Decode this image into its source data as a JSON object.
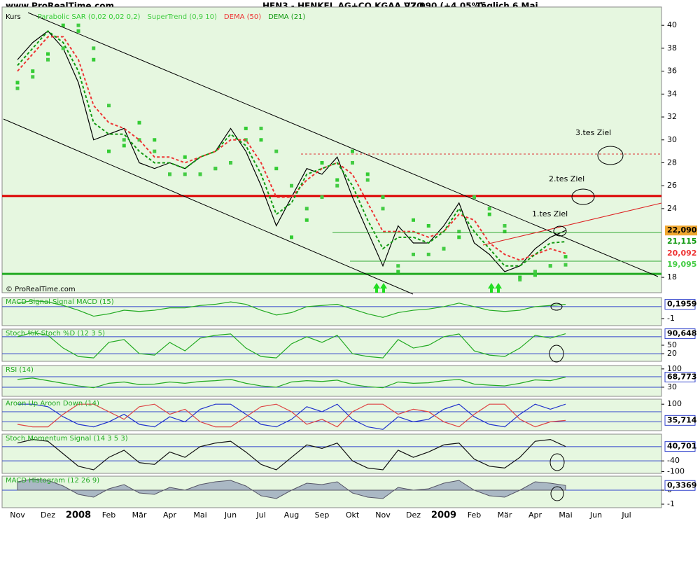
{
  "header": {
    "site": "www.ProRealTime.com",
    "instrument": "HEN3 - HENKEL AG+CO.KGAA VZO",
    "quote": "22,090 (+4,05%)",
    "period": "Täglich  6 Mai",
    "watermark": "© ProRealTime.com"
  },
  "annotations": [
    "1.tes Ziel",
    "2.tes Ziel",
    "3.tes Ziel"
  ],
  "chart_data": [
    {
      "type": "line",
      "categories": [
        "Nov",
        null,
        "Dez",
        null,
        "2008",
        null,
        "Feb",
        null,
        "Mär",
        null,
        "Apr",
        null,
        "Mai",
        null,
        "Jun",
        null,
        "Jul",
        null,
        "Aug",
        null,
        "Sep",
        null,
        "Okt",
        null,
        "Nov",
        null,
        "Dez",
        null,
        "2009",
        null,
        "Feb",
        null,
        "Mär",
        null,
        "Apr",
        null,
        "Mai",
        null,
        "Jun",
        null,
        "Jul",
        null
      ],
      "ylim": [
        16.66,
        41.6
      ],
      "yticks": [
        18,
        24,
        26,
        28,
        30,
        32,
        34,
        36,
        38,
        40
      ],
      "levels": [
        {
          "value": 25.1,
          "color": "#dd0000"
        },
        {
          "value": 18.3,
          "color": "#22aa22"
        }
      ],
      "series": [
        {
          "name": "Kurs",
          "color": "#000000",
          "style": "line",
          "last_label": "22,090",
          "values": [
            37,
            38.5,
            39.5,
            38,
            35,
            30,
            30.5,
            31,
            28,
            27.5,
            28,
            27.5,
            28.5,
            29,
            31,
            29,
            26,
            22.5,
            25,
            27.5,
            27,
            28.5,
            25,
            22,
            19,
            22.5,
            21,
            21,
            22.5,
            24.5,
            21,
            20,
            18.5,
            19,
            20.5,
            21.5,
            22.09,
            null,
            null,
            null,
            null,
            null
          ]
        },
        {
          "name": "Parabolic SAR (0,02 0,02 0,2)",
          "color": "#33cc33",
          "style": "dots",
          "values": [
            35,
            36,
            37.5,
            40,
            39.5,
            37,
            29,
            29.5,
            31.5,
            30,
            27,
            28.5,
            27,
            27.5,
            28,
            31,
            30,
            27.5,
            21.5,
            23,
            28,
            26.5,
            29,
            27,
            25,
            18.5,
            23,
            22.5,
            20.5,
            21.5,
            25,
            23.5,
            22,
            18,
            18.2,
            19,
            19.8,
            null,
            null,
            null,
            null,
            null
          ]
        },
        {
          "name": "SuperTrend (0,9 10)",
          "color": "#44cc44",
          "style": "dots",
          "last_label": "19,095",
          "values": [
            34.5,
            35.5,
            37,
            38,
            40,
            38,
            33,
            30,
            30,
            29,
            27,
            27,
            27,
            27.5,
            28,
            30,
            31,
            29,
            26,
            24,
            25,
            26,
            28,
            26.5,
            24,
            19,
            20,
            20,
            20.5,
            22,
            25,
            24,
            22.5,
            17.8,
            18.5,
            19,
            19.095,
            null,
            null,
            null,
            null,
            null
          ]
        },
        {
          "name": "DEMA (50)",
          "color": "#ee3333",
          "style": "dashed",
          "last_label": "20,092",
          "values": [
            36,
            37.5,
            39,
            39,
            37,
            33,
            31.5,
            31,
            30,
            28.5,
            28.5,
            28,
            28.5,
            29,
            30,
            30,
            28,
            25,
            25,
            26.5,
            27.5,
            28,
            27,
            24.5,
            22,
            22,
            22,
            21.5,
            22,
            23.5,
            23,
            21,
            20,
            19.5,
            20,
            20.5,
            20.092,
            null,
            null,
            null,
            null,
            null
          ]
        },
        {
          "name": "DEMA (21)",
          "color": "#119911",
          "style": "dashed",
          "last_label": "21,115",
          "values": [
            36.5,
            38,
            39.5,
            38.5,
            36,
            31.5,
            30.5,
            30.5,
            29,
            28,
            28,
            27.5,
            28.5,
            29,
            30.5,
            29.5,
            27,
            23.5,
            24.5,
            27,
            27.5,
            28,
            26,
            23,
            20.5,
            21.5,
            21.5,
            21,
            22,
            24,
            22,
            20.5,
            19,
            19,
            20,
            21,
            21.115,
            null,
            null,
            null,
            null,
            null
          ]
        }
      ]
    },
    {
      "type": "line",
      "title": "MACD Signal Signal MACD (15)",
      "ylim": [
        -1.59,
        0.76
      ],
      "yticks": [
        -1
      ],
      "levels": [
        0
      ],
      "last_label": "0,1959",
      "series": [
        {
          "color": "#22aa22",
          "values": [
            0.3,
            0.5,
            0.4,
            0.1,
            -0.3,
            -0.8,
            -0.6,
            -0.3,
            -0.4,
            -0.3,
            -0.1,
            -0.1,
            0.1,
            0.2,
            0.4,
            0.2,
            -0.3,
            -0.7,
            -0.5,
            0,
            0.1,
            0.2,
            -0.2,
            -0.6,
            -0.9,
            -0.5,
            -0.3,
            -0.2,
            0,
            0.3,
            0,
            -0.3,
            -0.4,
            -0.3,
            0,
            0.1,
            0.1959,
            null,
            null,
            null,
            null,
            null
          ]
        }
      ]
    },
    {
      "type": "line",
      "title": "Stoch %K Stoch %D (12 3 5)",
      "ylim": [
        -7,
        107
      ],
      "yticks": [
        50,
        20
      ],
      "levels": [
        80,
        20
      ],
      "last_label": "90,648",
      "series": [
        {
          "color": "#22aa22",
          "values": [
            80,
            95,
            85,
            40,
            10,
            5,
            60,
            70,
            20,
            15,
            60,
            30,
            75,
            85,
            90,
            40,
            10,
            5,
            55,
            80,
            60,
            85,
            20,
            10,
            5,
            70,
            40,
            50,
            80,
            90,
            30,
            15,
            10,
            40,
            85,
            75,
            90.648,
            null,
            null,
            null,
            null,
            null
          ]
        }
      ]
    },
    {
      "type": "line",
      "title": "RSI (14)",
      "ylim": [
        -5,
        113
      ],
      "yticks": [
        100,
        30
      ],
      "levels": [
        70,
        30
      ],
      "last_label": "68,773",
      "series": [
        {
          "color": "#22aa22",
          "values": [
            60,
            65,
            55,
            45,
            35,
            28,
            45,
            50,
            40,
            42,
            50,
            45,
            52,
            55,
            60,
            45,
            35,
            30,
            50,
            55,
            52,
            57,
            40,
            32,
            28,
            50,
            45,
            47,
            55,
            60,
            42,
            38,
            35,
            45,
            58,
            55,
            68.773,
            null,
            null,
            null,
            null,
            null
          ]
        }
      ]
    },
    {
      "type": "line",
      "title": "Aroon Up Aroon Down (14)",
      "ylim": [
        -5,
        120
      ],
      "yticks": [
        100
      ],
      "levels": [
        70,
        30
      ],
      "last_label": "35,714",
      "series": [
        {
          "color": "#2233cc",
          "values": [
            100,
            100,
            90,
            50,
            20,
            10,
            30,
            60,
            20,
            10,
            50,
            30,
            80,
            100,
            100,
            60,
            20,
            10,
            40,
            90,
            70,
            100,
            40,
            10,
            0,
            50,
            30,
            40,
            80,
            100,
            50,
            20,
            10,
            60,
            100,
            80,
            100,
            null,
            null,
            null,
            null,
            null
          ]
        },
        {
          "color": "#dd4444",
          "values": [
            20,
            10,
            10,
            60,
            100,
            100,
            70,
            40,
            90,
            100,
            60,
            80,
            30,
            10,
            10,
            50,
            90,
            100,
            70,
            20,
            40,
            10,
            70,
            100,
            100,
            60,
            80,
            70,
            30,
            10,
            60,
            100,
            100,
            40,
            10,
            30,
            35.714,
            null,
            null,
            null,
            null,
            null
          ]
        }
      ]
    },
    {
      "type": "line",
      "title": "Stoch Momentum Signal (14 3 5 3)",
      "ylim": [
        -110,
        110
      ],
      "yticks": [
        -40,
        -100
      ],
      "levels": [
        40,
        -40
      ],
      "last_label": "40,701",
      "series": [
        {
          "color": "#111111",
          "values": [
            60,
            80,
            70,
            0,
            -70,
            -90,
            -20,
            20,
            -50,
            -60,
            10,
            -20,
            40,
            60,
            70,
            10,
            -60,
            -90,
            -20,
            50,
            30,
            60,
            -40,
            -80,
            -90,
            20,
            -20,
            10,
            50,
            60,
            -30,
            -70,
            -80,
            -20,
            70,
            80,
            40.701,
            null,
            null,
            null,
            null,
            null
          ]
        }
      ]
    },
    {
      "type": "area",
      "title": "MACD Histogram (12 26 9)",
      "ylim": [
        -1.25,
        1.0
      ],
      "yticks": [
        0,
        -1
      ],
      "levels": [
        0
      ],
      "last_label": "0,3369",
      "series": [
        {
          "color": "#aab8c4",
          "values": [
            0.6,
            0.8,
            0.7,
            0.3,
            -0.3,
            -0.5,
            0.1,
            0.4,
            -0.2,
            -0.3,
            0.2,
            0,
            0.4,
            0.6,
            0.7,
            0.3,
            -0.4,
            -0.6,
            0,
            0.5,
            0.4,
            0.6,
            -0.2,
            -0.5,
            -0.6,
            0.2,
            0,
            0.1,
            0.5,
            0.7,
            0,
            -0.4,
            -0.5,
            0,
            0.6,
            0.5,
            0.3369,
            null,
            null,
            null,
            null,
            null
          ]
        }
      ]
    }
  ]
}
